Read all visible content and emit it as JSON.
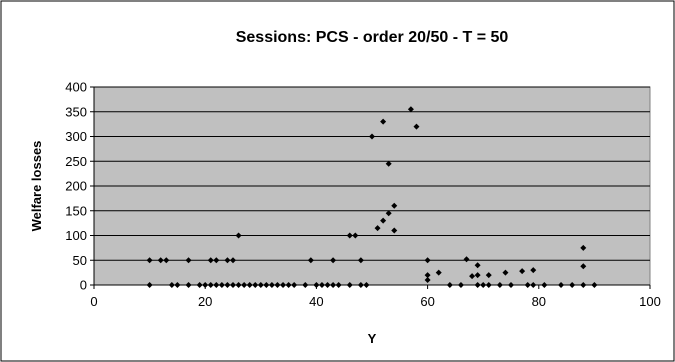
{
  "chart_data": {
    "type": "scatter",
    "title": "Sessions: PCS - order 20/50 - T = 50",
    "xlabel": "Y",
    "ylabel": "Welfare losses",
    "xlim": [
      0,
      100
    ],
    "ylim": [
      0,
      400
    ],
    "x_ticks": [
      "0",
      "20",
      "40",
      "60",
      "80",
      "100"
    ],
    "y_ticks": [
      "0",
      "50",
      "100",
      "150",
      "200",
      "250",
      "300",
      "350",
      "400"
    ],
    "grid": "horizontal",
    "legend": "none",
    "plot_background": "#c0c0c0",
    "marker_color": "#000000",
    "series": [
      {
        "points": [
          [
            10,
            50
          ],
          [
            10,
            0
          ],
          [
            12,
            50
          ],
          [
            13,
            50
          ],
          [
            14,
            0
          ],
          [
            15,
            0
          ],
          [
            17,
            50
          ],
          [
            17,
            0
          ],
          [
            19,
            0
          ],
          [
            20,
            0
          ],
          [
            21,
            0
          ],
          [
            21,
            50
          ],
          [
            22,
            0
          ],
          [
            22,
            50
          ],
          [
            23,
            0
          ],
          [
            24,
            0
          ],
          [
            24,
            50
          ],
          [
            25,
            50
          ],
          [
            25,
            0
          ],
          [
            26,
            100
          ],
          [
            26,
            0
          ],
          [
            27,
            0
          ],
          [
            28,
            0
          ],
          [
            29,
            0
          ],
          [
            30,
            0
          ],
          [
            31,
            0
          ],
          [
            32,
            0
          ],
          [
            33,
            0
          ],
          [
            34,
            0
          ],
          [
            35,
            0
          ],
          [
            36,
            0
          ],
          [
            38,
            0
          ],
          [
            39,
            50
          ],
          [
            40,
            0
          ],
          [
            41,
            0
          ],
          [
            42,
            0
          ],
          [
            43,
            0
          ],
          [
            43,
            50
          ],
          [
            44,
            0
          ],
          [
            46,
            100
          ],
          [
            46,
            0
          ],
          [
            47,
            100
          ],
          [
            48,
            0
          ],
          [
            48,
            50
          ],
          [
            49,
            0
          ],
          [
            50,
            300
          ],
          [
            51,
            115
          ],
          [
            52,
            130
          ],
          [
            52,
            330
          ],
          [
            53,
            245
          ],
          [
            53,
            145
          ],
          [
            54,
            160
          ],
          [
            54,
            110
          ],
          [
            57,
            355
          ],
          [
            58,
            320
          ],
          [
            60,
            50
          ],
          [
            60,
            20
          ],
          [
            60,
            10
          ],
          [
            62,
            25
          ],
          [
            64,
            0
          ],
          [
            66,
            0
          ],
          [
            67,
            52
          ],
          [
            68,
            18
          ],
          [
            69,
            40
          ],
          [
            69,
            20
          ],
          [
            69,
            0
          ],
          [
            70,
            0
          ],
          [
            71,
            0
          ],
          [
            71,
            20
          ],
          [
            73,
            0
          ],
          [
            74,
            25
          ],
          [
            75,
            0
          ],
          [
            77,
            28
          ],
          [
            78,
            0
          ],
          [
            79,
            30
          ],
          [
            79,
            0
          ],
          [
            81,
            0
          ],
          [
            84,
            0
          ],
          [
            86,
            0
          ],
          [
            88,
            75
          ],
          [
            88,
            38
          ],
          [
            88,
            0
          ],
          [
            90,
            0
          ]
        ]
      }
    ]
  }
}
